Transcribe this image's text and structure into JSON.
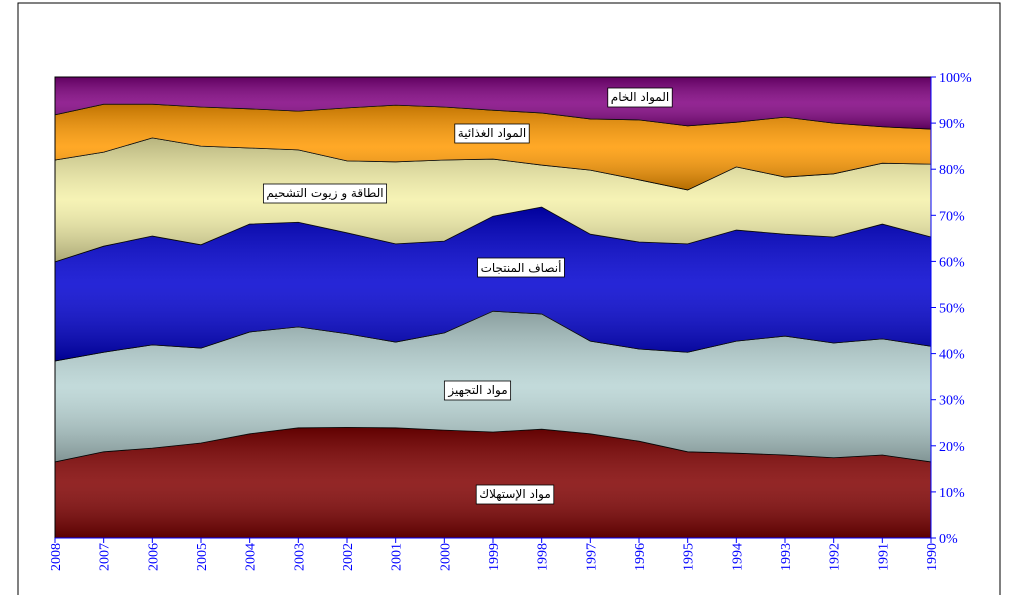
{
  "chart_data": {
    "type": "stacked_area_100",
    "categories": [
      "2008",
      "2007",
      "2006",
      "2005",
      "2004",
      "2003",
      "2002",
      "2001",
      "2000",
      "1999",
      "1998",
      "1997",
      "1996",
      "1995",
      "1994",
      "1993",
      "1992",
      "1991",
      "1990"
    ],
    "series": [
      {
        "name": "مواد الإستهلاك",
        "color": "#800000",
        "values": [
          16.5,
          18.7,
          19.5,
          20.6,
          22.6,
          23.9,
          24,
          23.9,
          23.4,
          23,
          23.6,
          22.6,
          21,
          18.7,
          18.4,
          18,
          17.4,
          18,
          16.5
        ]
      },
      {
        "name": "مواد التجهيز",
        "color": "#b8d4d4",
        "values": [
          21.9,
          21.6,
          22.4,
          20.6,
          22.1,
          21.9,
          20.3,
          18.6,
          21.1,
          26.2,
          25,
          20.1,
          20,
          21.6,
          24.3,
          25.8,
          24.9,
          25.2,
          25.1
        ]
      },
      {
        "name": "أنصاف المنتجات",
        "color": "#0000d0",
        "values": [
          21.5,
          23,
          23.6,
          22.4,
          23.4,
          22.7,
          21.9,
          21.3,
          19.9,
          20.6,
          23.2,
          23.2,
          23.2,
          23.5,
          24.1,
          22.1,
          23,
          24.9,
          23.7
        ]
      },
      {
        "name": "الطاقة و زيوت التشحيم",
        "color": "#f4f0a8",
        "values": [
          22.1,
          20.4,
          21.3,
          21.4,
          16.5,
          15.7,
          15.6,
          17.8,
          17.6,
          12.4,
          9.1,
          13.9,
          13.5,
          11.7,
          13.7,
          12.4,
          13.7,
          13.2,
          15.8
        ]
      },
      {
        "name": "المواد الغذائية",
        "color": "#ff9900",
        "values": [
          9.8,
          10.4,
          7.3,
          8.5,
          8.5,
          8.4,
          11.5,
          12.3,
          11.5,
          10.6,
          11.3,
          11.1,
          13,
          13.9,
          9.7,
          13,
          11,
          7.9,
          7.6
        ]
      },
      {
        "name": "المواد الخام",
        "color": "#800080",
        "values": [
          8.2,
          5.9,
          5.9,
          6.5,
          6.9,
          7.4,
          6.7,
          6.1,
          6.5,
          7.2,
          7.8,
          9.1,
          9.3,
          10.6,
          9.8,
          8.7,
          10,
          10.8,
          11.3
        ]
      }
    ],
    "ylim": [
      0,
      100
    ],
    "yticks": [
      {
        "value": 0,
        "label": "0%"
      },
      {
        "value": 10,
        "label": "10%"
      },
      {
        "value": 20,
        "label": "20%"
      },
      {
        "value": 30,
        "label": "30%"
      },
      {
        "value": 40,
        "label": "40%"
      },
      {
        "value": 50,
        "label": "50%"
      },
      {
        "value": 60,
        "label": "60%"
      },
      {
        "value": 70,
        "label": "70%"
      },
      {
        "value": 80,
        "label": "80%"
      },
      {
        "value": 90,
        "label": "90%"
      },
      {
        "value": 100,
        "label": "100%"
      }
    ],
    "axis_color": "#0000ff"
  }
}
